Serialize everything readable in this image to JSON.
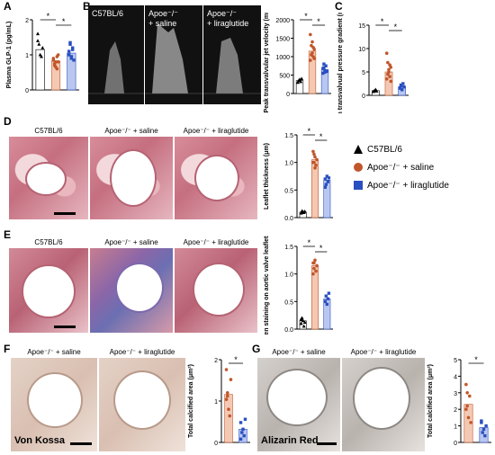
{
  "panels": {
    "A": "A",
    "B": "B",
    "C": "C",
    "D": "D",
    "E": "E",
    "F": "F",
    "G": "G"
  },
  "groups": {
    "c57": "C57BL/6",
    "saline": "Apoe⁻/⁻ + saline",
    "lira": "Apoe⁻/⁻ + liraglutide"
  },
  "echo": {
    "c57": "C57BL/6",
    "apoe_line1": "Apoe⁻/⁻",
    "saline_line2": "+ saline",
    "lira_line2": "+ liraglutide"
  },
  "stains": {
    "vonkossa": "Von Kossa",
    "alizarin": "Alizarin Red"
  },
  "significance": "*",
  "colors": {
    "c57": "#000000",
    "saline": "#c0562a",
    "lira": "#2a4fc0",
    "saline_bar": "#f4c9b4",
    "lira_bar": "#b9c7f0"
  },
  "chart_data": [
    {
      "id": "A",
      "type": "bar",
      "ylabel": "Plasma GLP-1 (pg/mL)",
      "ylim": [
        0,
        2
      ],
      "yticks": [
        "0",
        "1",
        "2"
      ],
      "series": [
        {
          "group": "c57",
          "mean": 1.15,
          "points": [
            1.4,
            1.3,
            1.0,
            0.95,
            1.2,
            1.6
          ]
        },
        {
          "group": "saline",
          "mean": 0.82,
          "points": [
            0.9,
            0.7,
            0.8,
            0.6,
            1.0,
            0.85,
            0.75,
            0.65,
            0.95,
            0.8
          ]
        },
        {
          "group": "lira",
          "mean": 1.05,
          "points": [
            1.0,
            1.3,
            0.9,
            1.2,
            0.85,
            1.1,
            1.35,
            0.95,
            1.15
          ]
        }
      ]
    },
    {
      "id": "B",
      "type": "bar",
      "ylabel": "Peak transvalvular jet velocity (mm/s)",
      "ylim": [
        0,
        2000
      ],
      "yticks": [
        "0",
        "500",
        "1000",
        "1500",
        "2000"
      ],
      "series": [
        {
          "group": "c57",
          "mean": 350,
          "points": [
            300,
            350,
            380,
            320,
            400
          ]
        },
        {
          "group": "saline",
          "mean": 1150,
          "points": [
            1600,
            1300,
            1100,
            1000,
            1200,
            900,
            1050,
            1400,
            1250,
            950
          ]
        },
        {
          "group": "lira",
          "mean": 650,
          "points": [
            550,
            700,
            620,
            750,
            600,
            680,
            800,
            580
          ]
        }
      ]
    },
    {
      "id": "C",
      "type": "bar",
      "ylabel": "Mean transvalvual pressure gradient (mmHg)",
      "ylim": [
        0,
        15
      ],
      "yticks": [
        "0",
        "5",
        "10",
        "15"
      ],
      "series": [
        {
          "group": "c57",
          "mean": 1.0,
          "points": [
            0.8,
            1.0,
            1.2,
            0.9
          ]
        },
        {
          "group": "saline",
          "mean": 5.0,
          "points": [
            9,
            7,
            5,
            4,
            6,
            3.5,
            4.5,
            5.5,
            6.5,
            3
          ]
        },
        {
          "group": "lira",
          "mean": 1.8,
          "points": [
            1.5,
            2.0,
            1.2,
            2.5,
            1.8,
            1.6,
            2.2
          ]
        }
      ]
    },
    {
      "id": "D",
      "type": "bar",
      "ylabel": "Leaflet thickness (μm)",
      "ylim": [
        0,
        1.5
      ],
      "yticks": [
        "0.0",
        "0.5",
        "1.0",
        "1.5"
      ],
      "series": [
        {
          "group": "c57",
          "mean": 0.1,
          "points": [
            0.08,
            0.12,
            0.1,
            0.09,
            0.11
          ]
        },
        {
          "group": "saline",
          "mean": 1.05,
          "points": [
            1.2,
            1.0,
            1.1,
            0.95,
            1.05,
            1.0,
            1.15,
            0.9
          ]
        },
        {
          "group": "lira",
          "mean": 0.68,
          "points": [
            0.7,
            0.6,
            0.75,
            0.65,
            0.72,
            0.55
          ]
        }
      ]
    },
    {
      "id": "E",
      "type": "bar",
      "ylabel": "Collagen staining on aortic valve leaflets (%)",
      "ylim": [
        0,
        1.5
      ],
      "yticks": [
        "0.0",
        "0.5",
        "1.0",
        "1.5"
      ],
      "series": [
        {
          "group": "c57",
          "mean": 0.15,
          "points": [
            0.1,
            0.2,
            0.15,
            0.05,
            0.12,
            0.18
          ]
        },
        {
          "group": "saline",
          "mean": 1.15,
          "points": [
            1.2,
            1.1,
            1.25,
            1.05,
            1.15,
            1.0,
            1.2
          ]
        },
        {
          "group": "lira",
          "mean": 0.55,
          "points": [
            0.5,
            0.6,
            0.45,
            0.55,
            0.65,
            0.5
          ]
        }
      ]
    },
    {
      "id": "F",
      "type": "bar",
      "ylabel": "Total calcified area (μm²)",
      "ylim": [
        0,
        2.5
      ],
      "yticks": [
        "0",
        "1",
        "2"
      ],
      "series": [
        {
          "group": "saline",
          "mean": 1.45,
          "points": [
            2.2,
            1.5,
            1.0,
            0.8,
            1.9,
            1.3,
            1.4
          ]
        },
        {
          "group": "lira",
          "mean": 0.4,
          "points": [
            0.6,
            0.3,
            0.4,
            0.2,
            0.7,
            0.1
          ]
        }
      ]
    },
    {
      "id": "G",
      "type": "bar",
      "ylabel": "Total calcified area (μm²)",
      "ylim": [
        0,
        5
      ],
      "yticks": [
        "0",
        "1",
        "2",
        "3",
        "4",
        "5"
      ],
      "series": [
        {
          "group": "saline",
          "mean": 2.3,
          "points": [
            3.5,
            2.2,
            1.5,
            2.8,
            1.2,
            2.0,
            3.0
          ]
        },
        {
          "group": "lira",
          "mean": 0.9,
          "points": [
            1.3,
            0.6,
            0.8,
            0.4,
            1.0,
            1.2
          ]
        }
      ]
    }
  ]
}
